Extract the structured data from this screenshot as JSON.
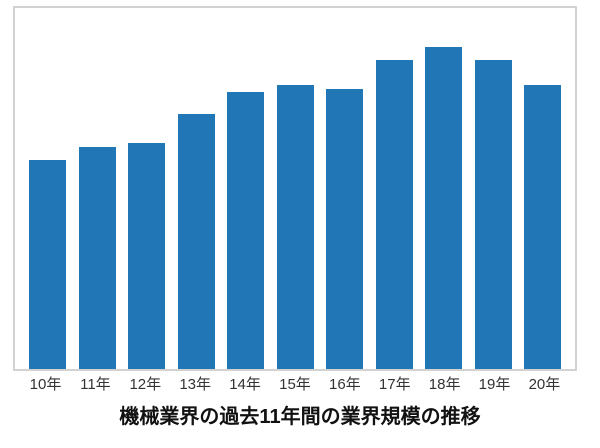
{
  "page": {
    "background": "#ffffff"
  },
  "chart_data": {
    "type": "bar",
    "title": "機械業界の過去11年間の業界規模の推移",
    "categories": [
      "10年",
      "11年",
      "12年",
      "13年",
      "14年",
      "15年",
      "16年",
      "17年",
      "18年",
      "19年",
      "20年"
    ],
    "values": [
      65,
      69,
      70,
      79,
      86,
      88,
      87,
      96,
      100,
      96,
      88
    ],
    "xlabel": "",
    "ylabel": "",
    "ylim": [
      0,
      112
    ],
    "units": "relative index (no y-axis shown, max year 18年 = 100)",
    "grid": false,
    "y_axis_visible": false,
    "legend_position": "none",
    "bar_color": "#2176b5",
    "plot_border_color": "#d2d2d2",
    "tick_label_color": "#333333",
    "title_color": "#111111",
    "title_position": "bottom"
  }
}
